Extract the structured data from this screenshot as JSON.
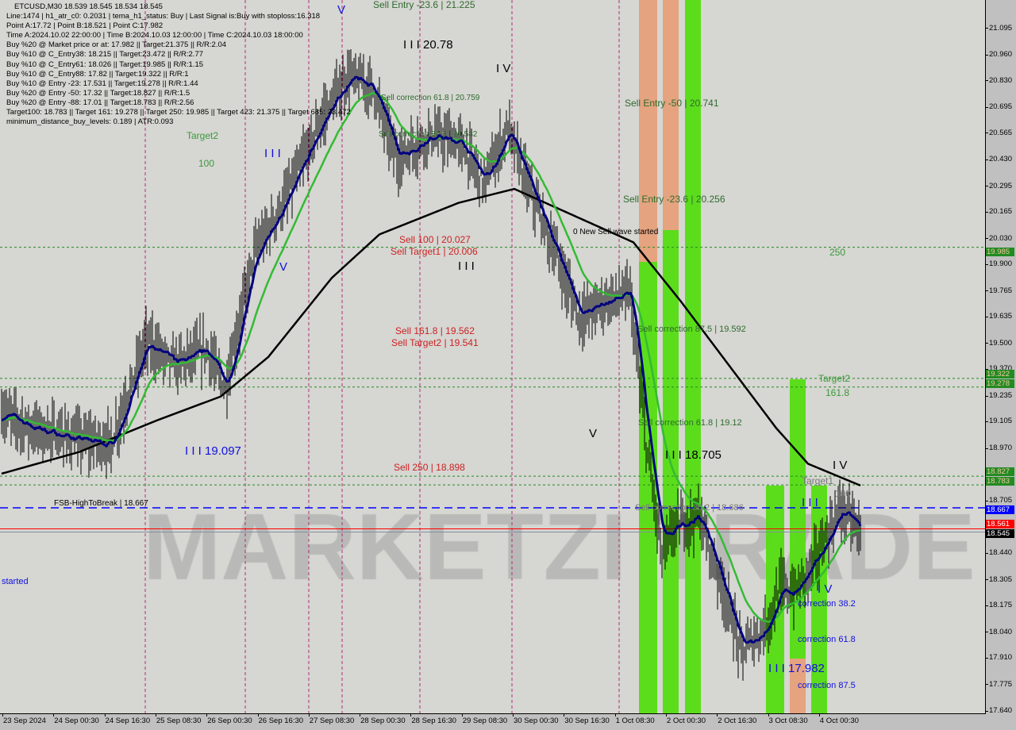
{
  "header": {
    "title": "ETCUSD,M30  18.539 18.545 18.534 18.545",
    "lines": [
      "Line:1474 | h1_atr_c0: 0.2031 | tema_h1_status: Buy | Last Signal is:Buy with stoploss:16.318",
      "Point A:17.72 | Point B:18.521 | Point C:17.982",
      "Time A:2024.10.02 22:00:00 | Time B:2024.10.03 12:00:00 | Time C:2024.10.03 18:00:00",
      "Buy %20 @ Market price or at: 17.982 || Target:21.375 || R/R:2.04",
      "Buy %10 @ C_Entry38: 18.215 || Target:23.472 || R/R:2.77",
      "Buy %10 @ C_Entry61: 18.026 || Target:19.985 || R/R:1.15",
      "Buy %10 @ C_Entry88: 17.82 || Target:19.322 || R/R:1",
      "Buy %10 @ Entry -23: 17.531 || Target:19.278 || R/R:1.44",
      "Buy %20 @ Entry -50: 17.32 || Target:18.827 || R/R:1.5",
      "Buy %20 @ Entry -88: 17.01 || Target:18.783 || R/R:2.56",
      "Target100: 18.783 || Target 161: 19.278 || Target 250: 19.985 || Target 423: 21.375 || Target 685: 23.472",
      "minimum_distance_buy_levels: 0.189 | ATR:0.093"
    ]
  },
  "watermark": "MARKETZI TRADE",
  "annotations": {
    "sell_entry_236_top": "Sell Entry -23.6 | 21.225",
    "wave3_top": "I I I 20.78",
    "wave4_top": "I V",
    "sell_corr_618_top": "Sell correction 61.8 | 20.759",
    "sell_corr_875_top": "Sell correction 87.5 | 20.582",
    "sell_entry_50": "Sell Entry -50 | 20.741",
    "sell_entry_236": "Sell Entry -23.6 | 20.256",
    "new_sell_wave": "0 New Sell wave started",
    "label_100": "100",
    "target2_top": "Target2",
    "wave3_blue": "I I I",
    "v_top": "V",
    "v_blue": "V",
    "sell_100": "Sell 100 | 20.027",
    "sell_target1": "Sell Target1 | 20.006",
    "wave3_mid": "I I I",
    "sell_1618": "Sell 161.8 | 19.562",
    "sell_target2": "Sell Target2 | 19.541",
    "sell_corr_875": "Sell correction 87.5 | 19.592",
    "wave5": "V",
    "sell_corr_618": "Sell correction 61.8 | 19.12",
    "wave3_18705": "I I I 18.705",
    "sell_250": "Sell  250 | 18.898",
    "fsb": "FSB-HighToBreak | 18.667",
    "sell_corr_382": "Sell correction 38.2 | 18.686",
    "label_250": "250",
    "target2_right": "Target2",
    "label_1618": "161.8",
    "wave4_right": "I V",
    "target1_right": "Target1",
    "label_100_right": "100",
    "wave3_right": "I I I",
    "wave3_19097": "I I I 19.097",
    "started": "started",
    "corr_382": "correction 38.2",
    "corr_618": "correction 61.8",
    "corr_875": "correction 87.5",
    "wave3_17982": "I I I 17.982",
    "wave4_blue": "I V"
  },
  "chart_data": {
    "type": "candlestick",
    "symbol": "ETCUSD",
    "timeframe": "M30",
    "ylim": [
      17.64,
      21.16
    ],
    "y_ticks": [
      "21.095",
      "20.960",
      "20.830",
      "20.695",
      "20.565",
      "20.430",
      "20.295",
      "20.165",
      "20.030",
      "19.900",
      "19.765",
      "19.635",
      "19.500",
      "19.370",
      "19.235",
      "19.105",
      "18.970",
      "18.705",
      "18.440",
      "18.305",
      "18.175",
      "18.040",
      "17.910",
      "17.775",
      "17.640"
    ],
    "x_ticks": [
      "23 Sep 2024",
      "24 Sep 00:30",
      "24 Sep 16:30",
      "25 Sep 08:30",
      "26 Sep 00:30",
      "26 Sep 16:30",
      "27 Sep 08:30",
      "28 Sep 00:30",
      "28 Sep 16:30",
      "29 Sep 08:30",
      "30 Sep 00:30",
      "30 Sep 16:30",
      "1 Oct 08:30",
      "2 Oct 00:30",
      "2 Oct 16:30",
      "3 Oct 08:30",
      "4 Oct 00:30"
    ],
    "price_path": [
      [
        "2024-09-23 08:30",
        19.15
      ],
      [
        "2024-09-23 18:00",
        19.07
      ],
      [
        "2024-09-24 09:00",
        19.01
      ],
      [
        "2024-09-24 19:00",
        18.99
      ],
      [
        "2024-09-25 06:00",
        19.51
      ],
      [
        "2024-09-25 15:00",
        19.39
      ],
      [
        "2024-09-26 01:00",
        19.47
      ],
      [
        "2024-09-26 07:00",
        19.27
      ],
      [
        "2024-09-26 16:00",
        19.95
      ],
      [
        "2024-09-27 02:00",
        20.23
      ],
      [
        "2024-09-27 14:30",
        20.67
      ],
      [
        "2024-09-27 22:00",
        20.85
      ],
      [
        "2024-09-28 05:30",
        20.79
      ],
      [
        "2024-09-28 13:00",
        20.43
      ],
      [
        "2024-09-28 23:00",
        20.55
      ],
      [
        "2024-09-29 09:00",
        20.51
      ],
      [
        "2024-09-29 16:30",
        20.31
      ],
      [
        "2024-09-30 00:00",
        20.59
      ],
      [
        "2024-09-30 05:00",
        20.35
      ],
      [
        "2024-09-30 15:00",
        19.95
      ],
      [
        "2024-09-30 22:30",
        19.63
      ],
      [
        "2024-10-01 06:00",
        19.71
      ],
      [
        "2024-10-01 14:30",
        19.75
      ],
      [
        "2024-10-01 19:30",
        18.99
      ],
      [
        "2024-10-02 00:30",
        18.43
      ],
      [
        "2024-10-02 04:30",
        18.57
      ],
      [
        "2024-10-02 12:00",
        18.63
      ],
      [
        "2024-10-02 19:30",
        18.27
      ],
      [
        "2024-10-03 01:30",
        17.94
      ],
      [
        "2024-10-03 09:00",
        18.06
      ],
      [
        "2024-10-03 14:00",
        18.27
      ],
      [
        "2024-10-03 18:00",
        18.23
      ],
      [
        "2024-10-04 01:30",
        18.43
      ],
      [
        "2024-10-04 09:00",
        18.67
      ],
      [
        "2024-10-04 15:00",
        18.545
      ]
    ],
    "slow_ma_path": [
      [
        "2024-09-23 08:30",
        18.84
      ],
      [
        "2024-09-24 09:00",
        18.95
      ],
      [
        "2024-09-25 09:30",
        19.11
      ],
      [
        "2024-09-26 05:30",
        19.23
      ],
      [
        "2024-09-26 20:30",
        19.43
      ],
      [
        "2024-09-27 16:30",
        19.83
      ],
      [
        "2024-09-28 07:30",
        20.05
      ],
      [
        "2024-09-29 08:30",
        20.21
      ],
      [
        "2024-09-30 02:00",
        20.28
      ],
      [
        "2024-09-30 14:30",
        20.19
      ],
      [
        "2024-10-01 15:30",
        20.01
      ],
      [
        "2024-10-02 06:30",
        19.71
      ],
      [
        "2024-10-02 21:30",
        19.39
      ],
      [
        "2024-10-03 12:30",
        19.07
      ],
      [
        "2024-10-03 22:30",
        18.89
      ],
      [
        "2024-10-04 15:00",
        18.78
      ]
    ],
    "levels": [
      {
        "price": "19.985",
        "kind": "target",
        "color": "#228b22"
      },
      {
        "price": "19.322",
        "kind": "target",
        "color": "#228b22"
      },
      {
        "price": "19.278",
        "kind": "target",
        "color": "#228b22"
      },
      {
        "price": "18.827",
        "kind": "target",
        "color": "#228b22"
      },
      {
        "price": "18.783",
        "kind": "target",
        "color": "#228b22"
      },
      {
        "price": "18.667",
        "kind": "fsb",
        "color": "#0000ff"
      },
      {
        "price": "18.561",
        "kind": "ask",
        "color": "#ff0000"
      },
      {
        "price": "18.545",
        "kind": "bid",
        "color": "#000000"
      }
    ],
    "colors": {
      "bars": "#000000",
      "fast_ma": "#000080",
      "mid_ma": "#33bb33",
      "slow_ma": "#000000",
      "buy_zone": "#55dd11",
      "sell_zone": "#e8966a"
    }
  }
}
